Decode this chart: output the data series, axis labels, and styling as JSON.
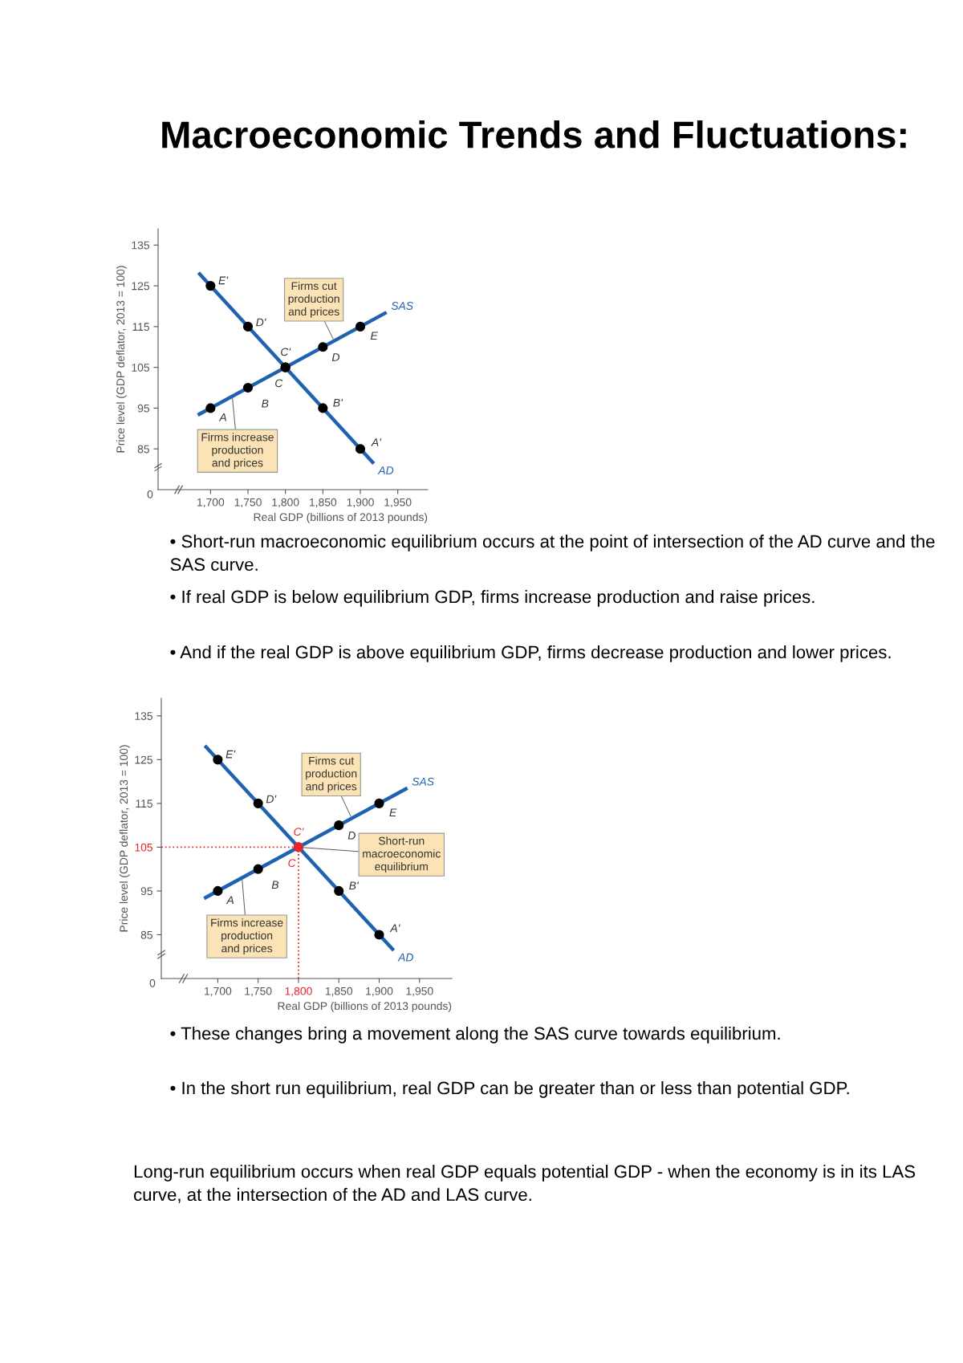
{
  "chart_data": [
    {
      "type": "line",
      "title": "Macroeconomic Trends and Fluctuations:",
      "xlabel": "Real GDP (billions of 2013 pounds)",
      "ylabel": "Price level (GDP deflator, 2013 = 100)",
      "xlim": [
        1630,
        1990
      ],
      "xticks": [
        {
          "value": 1700,
          "label": "1,700"
        },
        {
          "value": 1750,
          "label": "1,750"
        },
        {
          "value": 1800,
          "label": "1,800"
        },
        {
          "value": 1850,
          "label": "1,850"
        },
        {
          "value": 1900,
          "label": "1,900"
        },
        {
          "value": 1950,
          "label": "1,950"
        }
      ],
      "ylim": [
        75,
        139
      ],
      "yticks": [
        85,
        95,
        105,
        115,
        125,
        135
      ],
      "line_style": "solid",
      "series": [
        {
          "name": "SAS",
          "color": "#1f63b0",
          "x": [
            1683,
            1935
          ],
          "values": [
            93.3,
            118.5
          ]
        },
        {
          "name": "AD",
          "color": "#1f63b0",
          "x": [
            1684,
            1918
          ],
          "values": [
            128.2,
            81.4
          ]
        },
        {
          "name": "E'",
          "type": "scatter",
          "marker": "circle",
          "color": "#000000",
          "x": [
            1700
          ],
          "values": [
            125
          ]
        },
        {
          "name": "D'",
          "type": "scatter",
          "marker": "circle",
          "color": "#000000",
          "x": [
            1750
          ],
          "values": [
            115
          ]
        },
        {
          "name": "C'",
          "type": "scatter",
          "marker": "circle",
          "color": "#000000",
          "x": [
            1800
          ],
          "values": [
            105
          ]
        },
        {
          "name": "B'",
          "type": "scatter",
          "marker": "circle",
          "color": "#000000",
          "x": [
            1850
          ],
          "values": [
            95
          ]
        },
        {
          "name": "A'",
          "type": "scatter",
          "marker": "circle",
          "color": "#000000",
          "x": [
            1900
          ],
          "values": [
            85
          ]
        },
        {
          "name": "A",
          "type": "scatter",
          "marker": "circle",
          "color": "#000000",
          "x": [
            1700
          ],
          "values": [
            95
          ]
        },
        {
          "name": "B",
          "type": "scatter",
          "marker": "circle",
          "color": "#000000",
          "x": [
            1750
          ],
          "values": [
            100
          ]
        },
        {
          "name": "C",
          "type": "scatter",
          "marker": "circle",
          "color": "#000000",
          "x": [
            1800
          ],
          "values": [
            105
          ]
        },
        {
          "name": "D",
          "type": "scatter",
          "marker": "circle",
          "color": "#000000",
          "x": [
            1850
          ],
          "values": [
            110
          ]
        },
        {
          "name": "E",
          "type": "scatter",
          "marker": "circle",
          "color": "#000000",
          "x": [
            1900
          ],
          "values": [
            115
          ]
        }
      ],
      "annotations": [
        "0",
        {
          "text": "Firms cut\nproduction\nand prices",
          "x": 1865,
          "y": 111.5
        },
        {
          "text": "Firms increase\nproduction\nand prices",
          "x": 1729,
          "y": 97.9
        },
        "• Short-run macroeconomic equilibrium occurs at the point of intersection of the AD curve and the SAS curve.",
        "• If real GDP is below equilibrium GDP, firms increase production and raise prices.",
        "• And if the real GDP is above equilibrium GDP, firms decrease production and lower prices."
      ]
    },
    {
      "type": "line",
      "xlabel": "Real GDP (billions of 2013 pounds)",
      "ylabel": "Price level (GDP deflator, 2013 = 100)",
      "xlim": [
        1630,
        1990
      ],
      "xticks": [
        {
          "value": 1700,
          "label": "1,700"
        },
        {
          "value": 1750,
          "label": "1,750"
        },
        {
          "value": 1800,
          "label": "1,800"
        },
        {
          "value": 1850,
          "label": "1,850"
        },
        {
          "value": 1900,
          "label": "1,900"
        },
        {
          "value": 1950,
          "label": "1,950"
        }
      ],
      "ylim": [
        75,
        139
      ],
      "yticks": [
        85,
        95,
        105,
        115,
        125,
        135
      ],
      "line_style": "solid",
      "ref_lines": [
        {
          "axis": "x",
          "value": 1800,
          "color": "#e8262a",
          "line_style": "dotted"
        },
        {
          "axis": "y",
          "value": 105,
          "color": "#e8262a",
          "line_style": "dotted"
        }
      ],
      "series": [
        {
          "name": "SAS",
          "color": "#1f63b0",
          "x": [
            1683,
            1935
          ],
          "values": [
            93.3,
            118.5
          ]
        },
        {
          "name": "AD",
          "color": "#1f63b0",
          "x": [
            1684,
            1918
          ],
          "values": [
            128.2,
            81.4
          ]
        },
        {
          "name": "E'",
          "type": "scatter",
          "marker": "circle",
          "color": "#000000",
          "x": [
            1700
          ],
          "values": [
            125
          ]
        },
        {
          "name": "D'",
          "type": "scatter",
          "marker": "circle",
          "color": "#000000",
          "x": [
            1750
          ],
          "values": [
            115
          ]
        },
        {
          "name": "C'",
          "type": "scatter",
          "marker": "circle",
          "color": "#e8262a",
          "x": [
            1800
          ],
          "values": [
            105
          ]
        },
        {
          "name": "B'",
          "type": "scatter",
          "marker": "circle",
          "color": "#000000",
          "x": [
            1850
          ],
          "values": [
            95
          ]
        },
        {
          "name": "A'",
          "type": "scatter",
          "marker": "circle",
          "color": "#000000",
          "x": [
            1900
          ],
          "values": [
            85
          ]
        },
        {
          "name": "A",
          "type": "scatter",
          "marker": "circle",
          "color": "#000000",
          "x": [
            1700
          ],
          "values": [
            95
          ]
        },
        {
          "name": "B",
          "type": "scatter",
          "marker": "circle",
          "color": "#000000",
          "x": [
            1750
          ],
          "values": [
            100
          ]
        },
        {
          "name": "C",
          "type": "scatter",
          "marker": "circle",
          "color": "#e8262a",
          "x": [
            1800
          ],
          "values": [
            105
          ]
        },
        {
          "name": "D",
          "type": "scatter",
          "marker": "circle",
          "color": "#000000",
          "x": [
            1850
          ],
          "values": [
            110
          ]
        },
        {
          "name": "E",
          "type": "scatter",
          "marker": "circle",
          "color": "#000000",
          "x": [
            1900
          ],
          "values": [
            115
          ]
        }
      ],
      "annotations": [
        "0",
        {
          "text": "Firms cut\nproduction\nand prices",
          "x": 1866,
          "y": 111.6
        },
        {
          "text": "Firms increase\nproduction\nand prices",
          "x": 1730,
          "y": 98
        },
        {
          "text": "Short-run\nmacroeconomic\nequilibrium",
          "x": 1800,
          "y": 105
        },
        "• These changes bring a movement along the SAS curve towards equilibrium.",
        "• In the short run equilibrium, real GDP can be greater than or less than potential GDP.",
        "Long-run equilibrium occurs when real GDP equals potential GDP - when the economy is in its LAS curve, at the intersection of the AD and LAS curve."
      ]
    }
  ]
}
